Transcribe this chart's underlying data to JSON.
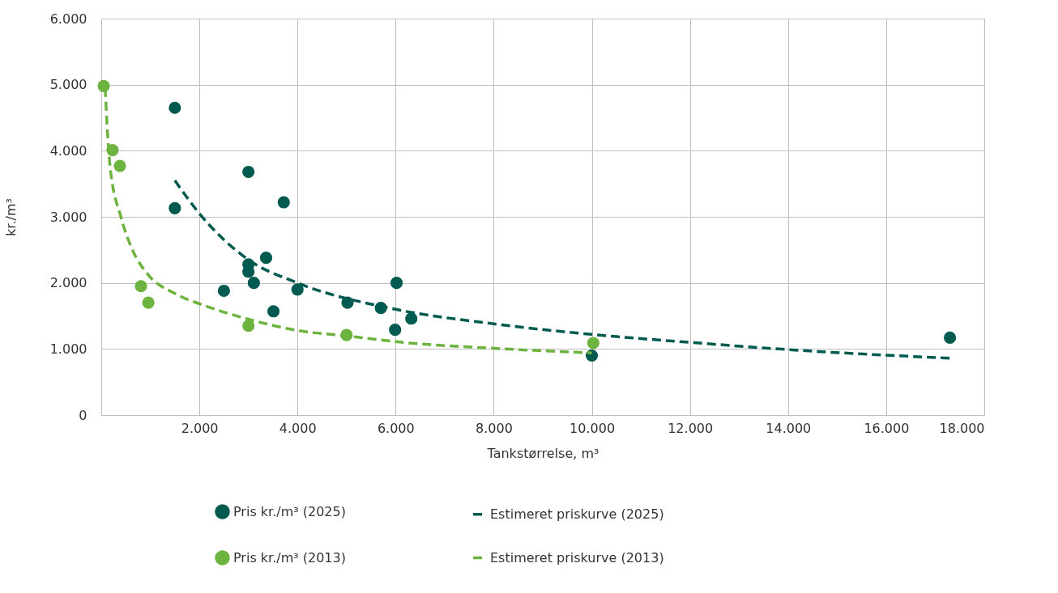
{
  "chart_data": {
    "type": "scatter",
    "xlabel": "Tankstørrelse, m³",
    "ylabel": "kr./m³",
    "xlim": [
      0,
      18000
    ],
    "ylim": [
      0,
      6000
    ],
    "xticks": [
      {
        "value": 0,
        "label": null
      },
      {
        "value": 2000,
        "label": "2.000"
      },
      {
        "value": 4000,
        "label": "4.000"
      },
      {
        "value": 6000,
        "label": "6.000"
      },
      {
        "value": 8000,
        "label": "8.000"
      },
      {
        "value": 10000,
        "label": "10.000"
      },
      {
        "value": 12000,
        "label": "12.000"
      },
      {
        "value": 14000,
        "label": "14.000"
      },
      {
        "value": 16000,
        "label": "16.000"
      },
      {
        "value": 18000,
        "label": "18.000"
      }
    ],
    "yticks": [
      0,
      {
        "value": 1000,
        "label": "1.000"
      },
      {
        "value": 2000,
        "label": "2.000"
      },
      {
        "value": 3000,
        "label": "3.000"
      },
      {
        "value": 4000,
        "label": "4.000"
      },
      {
        "value": 5000,
        "label": "5.000"
      },
      {
        "value": 6000,
        "label": "6.000"
      }
    ],
    "grid": true,
    "legend": "bottom",
    "series": [
      {
        "name": "Pris kr./m³ (2025)",
        "marker": "circle",
        "color": "#005a50",
        "x": [
          1500,
          1500,
          3000,
          3720,
          3360,
          3000,
          3000,
          3110,
          2500,
          4000,
          3510,
          5020,
          5700,
          6020,
          6320,
          5990,
          10000,
          17300
        ],
        "values": [
          4650,
          3130,
          3680,
          3220,
          2380,
          2280,
          2170,
          2000,
          1880,
          1900,
          1570,
          1700,
          1620,
          2000,
          1460,
          1290,
          900,
          1170
        ]
      },
      {
        "name": "Pris kr./m³ (2013)",
        "marker": "circle",
        "color": "#6db33f",
        "x": [
          50,
          230,
          380,
          810,
          960,
          3000,
          5000,
          10030
        ],
        "values": [
          4980,
          4010,
          3770,
          1950,
          1700,
          1350,
          1210,
          1090
        ]
      },
      {
        "name": "Estimeret priskurve (2025)",
        "type": "line",
        "line_style": "dashed",
        "color": "#005a50",
        "x": [
          1500,
          2000,
          3000,
          4000,
          6000,
          8000,
          10000,
          12000,
          14000,
          17300
        ],
        "values": [
          3550,
          3050,
          2350,
          2000,
          1600,
          1380,
          1220,
          1100,
          990,
          860
        ]
      },
      {
        "name": "Estimeret priskurve (2013)",
        "type": "line",
        "line_style": "dashed",
        "color": "#6db33f",
        "x": [
          80,
          110,
          180,
          400,
          630,
          960,
          1500,
          2170,
          2950,
          4000,
          5100,
          6000,
          8000,
          10000
        ],
        "values": [
          4950,
          4500,
          3760,
          3000,
          2510,
          2120,
          1840,
          1640,
          1460,
          1280,
          1190,
          1110,
          1010,
          940
        ]
      }
    ]
  }
}
